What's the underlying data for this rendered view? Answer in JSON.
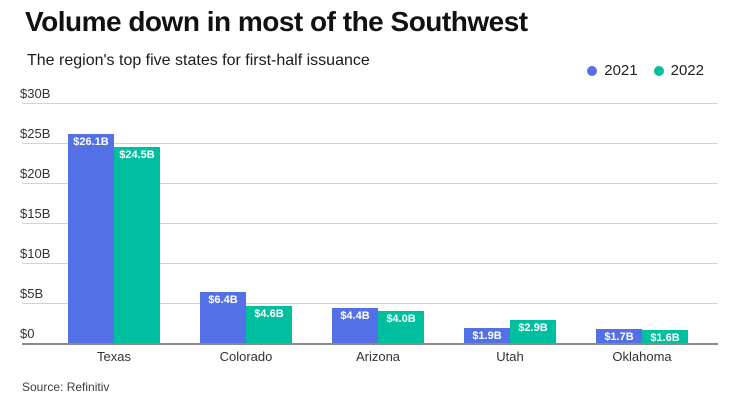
{
  "header": {
    "title": "Volume down in most of the Southwest",
    "subtitle": "The region's top five states for first-half issuance"
  },
  "footer": {
    "source": "Source: Refinitiv"
  },
  "colors": {
    "series_2021": "#5470e6",
    "series_2022": "#00bf9f",
    "gridline": "#d2d2d2",
    "baseline": "#8a8a8a",
    "value_label_text": "#ffffff"
  },
  "chart_data": {
    "type": "bar",
    "title": "Volume down in most of the Southwest",
    "subtitle": "The region's top five states for first-half issuance",
    "categories": [
      "Texas",
      "Colorado",
      "Arizona",
      "Utah",
      "Oklahoma"
    ],
    "series": [
      {
        "name": "2021",
        "color": "#5470e6",
        "values": [
          26.1,
          6.4,
          4.4,
          1.9,
          1.7
        ],
        "labels": [
          "$26.1B",
          "$6.4B",
          "$4.4B",
          "$1.9B",
          "$1.7B"
        ]
      },
      {
        "name": "2022",
        "color": "#00bf9f",
        "values": [
          24.5,
          4.6,
          4.0,
          2.9,
          1.6
        ],
        "labels": [
          "$24.5B",
          "$4.6B",
          "$4.0B",
          "$2.9B",
          "$1.6B"
        ]
      }
    ],
    "xlabel": "",
    "ylabel": "",
    "ylim": [
      0,
      30
    ],
    "y_tick_values": [
      30,
      25,
      20,
      15,
      10,
      5,
      0
    ],
    "y_tick_labels": [
      "$30B",
      "$25B",
      "$20B",
      "$15B",
      "$10B",
      "$5B",
      "$0"
    ],
    "grid": true,
    "legend_position": "top-right",
    "value_labels_position": "inside-top",
    "source": "Source: Refinitiv"
  }
}
